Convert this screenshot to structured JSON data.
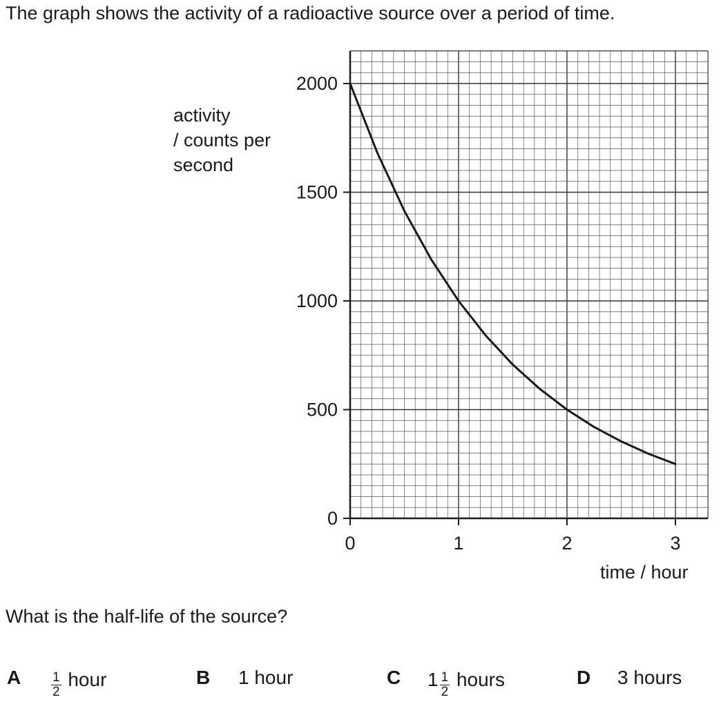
{
  "question": {
    "intro": "The graph shows the activity of a radioactive source over a period of time.",
    "prompt": "What is the half-life of the source?",
    "options": [
      {
        "letter": "A",
        "whole": "",
        "frac_num": "1",
        "frac_den": "2",
        "text": "hour"
      },
      {
        "letter": "B",
        "whole": "",
        "frac_num": "",
        "frac_den": "",
        "text": "1 hour"
      },
      {
        "letter": "C",
        "whole": "1",
        "frac_num": "1",
        "frac_den": "2",
        "text": "hours"
      },
      {
        "letter": "D",
        "whole": "",
        "frac_num": "",
        "frac_den": "",
        "text": "3 hours"
      }
    ]
  },
  "chart_data": {
    "type": "line",
    "ylabel_lines": [
      "activity",
      "/ counts per",
      "second"
    ],
    "xlabel": "time / hour",
    "xlim": [
      0,
      3.3
    ],
    "ylim": [
      0,
      2150
    ],
    "xticks": [
      0,
      1,
      2,
      3
    ],
    "yticks": [
      0,
      500,
      1000,
      1500,
      2000
    ],
    "grid": true,
    "series": [
      {
        "x": [
          0,
          0.25,
          0.5,
          0.75,
          1,
          1.25,
          1.5,
          1.75,
          2,
          2.25,
          2.5,
          2.75,
          3
        ],
        "y": [
          2000,
          1682,
          1414,
          1189,
          1000,
          841,
          707,
          595,
          500,
          420,
          354,
          297,
          250
        ],
        "color": "#1a1a1a"
      }
    ]
  }
}
